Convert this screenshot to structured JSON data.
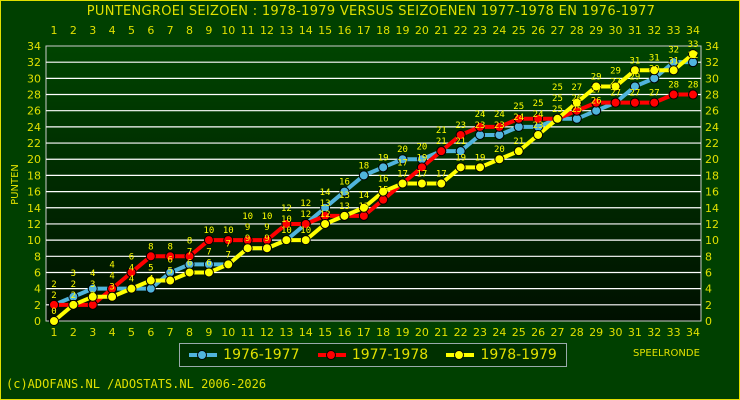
{
  "chart_data": {
    "type": "line",
    "title": "PUNTENGROEI  SEIZOEN : 1978-1979 VERSUS SEIZOENEN 1977-1978 EN 1976-1977",
    "xlabel": "SPEELRONDE",
    "ylabel": "PUNTEN",
    "x": [
      1,
      2,
      3,
      4,
      5,
      6,
      7,
      8,
      9,
      10,
      11,
      12,
      13,
      14,
      15,
      16,
      17,
      18,
      19,
      20,
      21,
      22,
      23,
      24,
      25,
      26,
      27,
      28,
      29,
      30,
      31,
      32,
      33,
      34
    ],
    "xlim": [
      1,
      34
    ],
    "ylim": [
      0,
      34
    ],
    "yticks": [
      0,
      2,
      4,
      6,
      8,
      10,
      12,
      14,
      16,
      18,
      20,
      22,
      24,
      26,
      28,
      30,
      32,
      34
    ],
    "grid": true,
    "legend_position": "bottom",
    "series": [
      {
        "name": "1976-1977",
        "color": "#50b4dc",
        "values": [
          2,
          3,
          4,
          4,
          4,
          4,
          6,
          7,
          7,
          7,
          9,
          9,
          10,
          12,
          14,
          16,
          18,
          19,
          20,
          20,
          21,
          21,
          23,
          23,
          24,
          24,
          25,
          25,
          26,
          27,
          29,
          30,
          32,
          32
        ]
      },
      {
        "name": "1977-1978",
        "color": "#ff0000",
        "values": [
          2,
          2,
          2,
          4,
          6,
          8,
          8,
          8,
          10,
          10,
          10,
          10,
          12,
          12,
          13,
          13,
          13,
          15,
          17,
          19,
          21,
          23,
          24,
          24,
          25,
          25,
          25,
          26,
          27,
          27,
          27,
          27,
          28,
          28
        ]
      },
      {
        "name": "1978-1979",
        "color": "#ffff00",
        "values": [
          0,
          2,
          3,
          3,
          4,
          5,
          5,
          6,
          6,
          7,
          9,
          9,
          10,
          10,
          12,
          13,
          14,
          16,
          17,
          17,
          17,
          19,
          19,
          20,
          21,
          23,
          25,
          27,
          29,
          29,
          31,
          31,
          31,
          33
        ]
      }
    ]
  },
  "footer": "(c)ADOFANS.NL /ADOSTATS.NL 2006-2026",
  "colors": {
    "background": "#004000",
    "text": "#e0e000",
    "grid": "#ffffff"
  }
}
